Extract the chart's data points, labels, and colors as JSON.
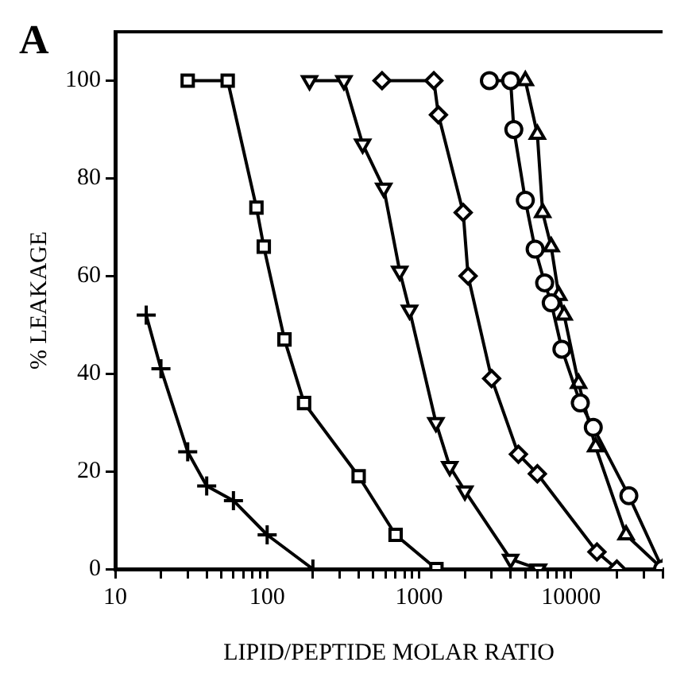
{
  "chart_data": {
    "type": "line",
    "xlabel": "LIPID/PEPTIDE MOLAR RATIO",
    "ylabel": "% LEAKAGE",
    "annotations": [
      "A"
    ],
    "log": "x",
    "grid": false,
    "legend": false,
    "line_style": "solid",
    "xlim": [
      10,
      40000
    ],
    "ylim": [
      0,
      110
    ],
    "xticks": [
      10,
      {
        "value": 20,
        "label": null
      },
      {
        "value": 30,
        "label": null
      },
      {
        "value": 40,
        "label": null
      },
      {
        "value": 50,
        "label": null
      },
      {
        "value": 60,
        "label": null
      },
      {
        "value": 70,
        "label": null
      },
      {
        "value": 80,
        "label": null
      },
      {
        "value": 90,
        "label": null
      },
      100,
      {
        "value": 200,
        "label": null
      },
      {
        "value": 300,
        "label": null
      },
      {
        "value": 400,
        "label": null
      },
      {
        "value": 500,
        "label": null
      },
      {
        "value": 600,
        "label": null
      },
      {
        "value": 700,
        "label": null
      },
      {
        "value": 800,
        "label": null
      },
      {
        "value": 900,
        "label": null
      },
      1000,
      {
        "value": 2000,
        "label": null
      },
      {
        "value": 3000,
        "label": null
      },
      {
        "value": 4000,
        "label": null
      },
      {
        "value": 5000,
        "label": null
      },
      {
        "value": 6000,
        "label": null
      },
      {
        "value": 7000,
        "label": null
      },
      {
        "value": 8000,
        "label": null
      },
      {
        "value": 9000,
        "label": null
      },
      10000,
      {
        "value": 20000,
        "label": null
      },
      {
        "value": 30000,
        "label": null
      },
      {
        "value": 40000,
        "label": null
      }
    ],
    "yticks": [
      0,
      20,
      40,
      60,
      80,
      100
    ],
    "series": [
      {
        "color": "#000000",
        "marker": "cross",
        "x": [
          16,
          20,
          30,
          40,
          60,
          100,
          200
        ],
        "values": [
          52,
          41,
          24,
          17,
          14,
          7,
          0
        ]
      },
      {
        "color": "#000000",
        "marker": "square",
        "x": [
          30,
          55,
          85,
          95,
          130,
          175,
          400,
          700,
          1300
        ],
        "values": [
          100,
          100,
          74,
          66,
          47,
          34,
          19,
          7,
          0
        ]
      },
      {
        "color": "#000000",
        "marker": "triangle-down",
        "x": [
          190,
          320,
          425,
          585,
          745,
          865,
          1290,
          1590,
          2000,
          4000,
          6100
        ],
        "values": [
          100,
          100,
          87,
          78,
          61,
          53,
          30,
          21,
          16,
          2,
          0
        ]
      },
      {
        "color": "#000000",
        "marker": "diamond",
        "x": [
          570,
          1250,
          1340,
          1950,
          2100,
          3000,
          4500,
          6000,
          14800,
          20000
        ],
        "values": [
          100,
          100,
          93,
          73,
          60,
          39,
          23.5,
          19.5,
          3.5,
          0
        ]
      },
      {
        "color": "#000000",
        "marker": "circle",
        "x": [
          2900,
          4000,
          4200,
          5000,
          5800,
          6700,
          7400,
          8700,
          11500,
          14000,
          24000,
          40000
        ],
        "values": [
          100,
          100,
          90,
          75.5,
          65.5,
          58.6,
          54.5,
          45,
          34,
          29,
          15,
          0
        ]
      },
      {
        "color": "#000000",
        "marker": "triangle",
        "x": [
          5000,
          6000,
          6500,
          7400,
          8300,
          9000,
          11200,
          14500,
          23000,
          40000
        ],
        "values": [
          100,
          89,
          73,
          66,
          56,
          52,
          38,
          25,
          7,
          0
        ]
      }
    ]
  }
}
